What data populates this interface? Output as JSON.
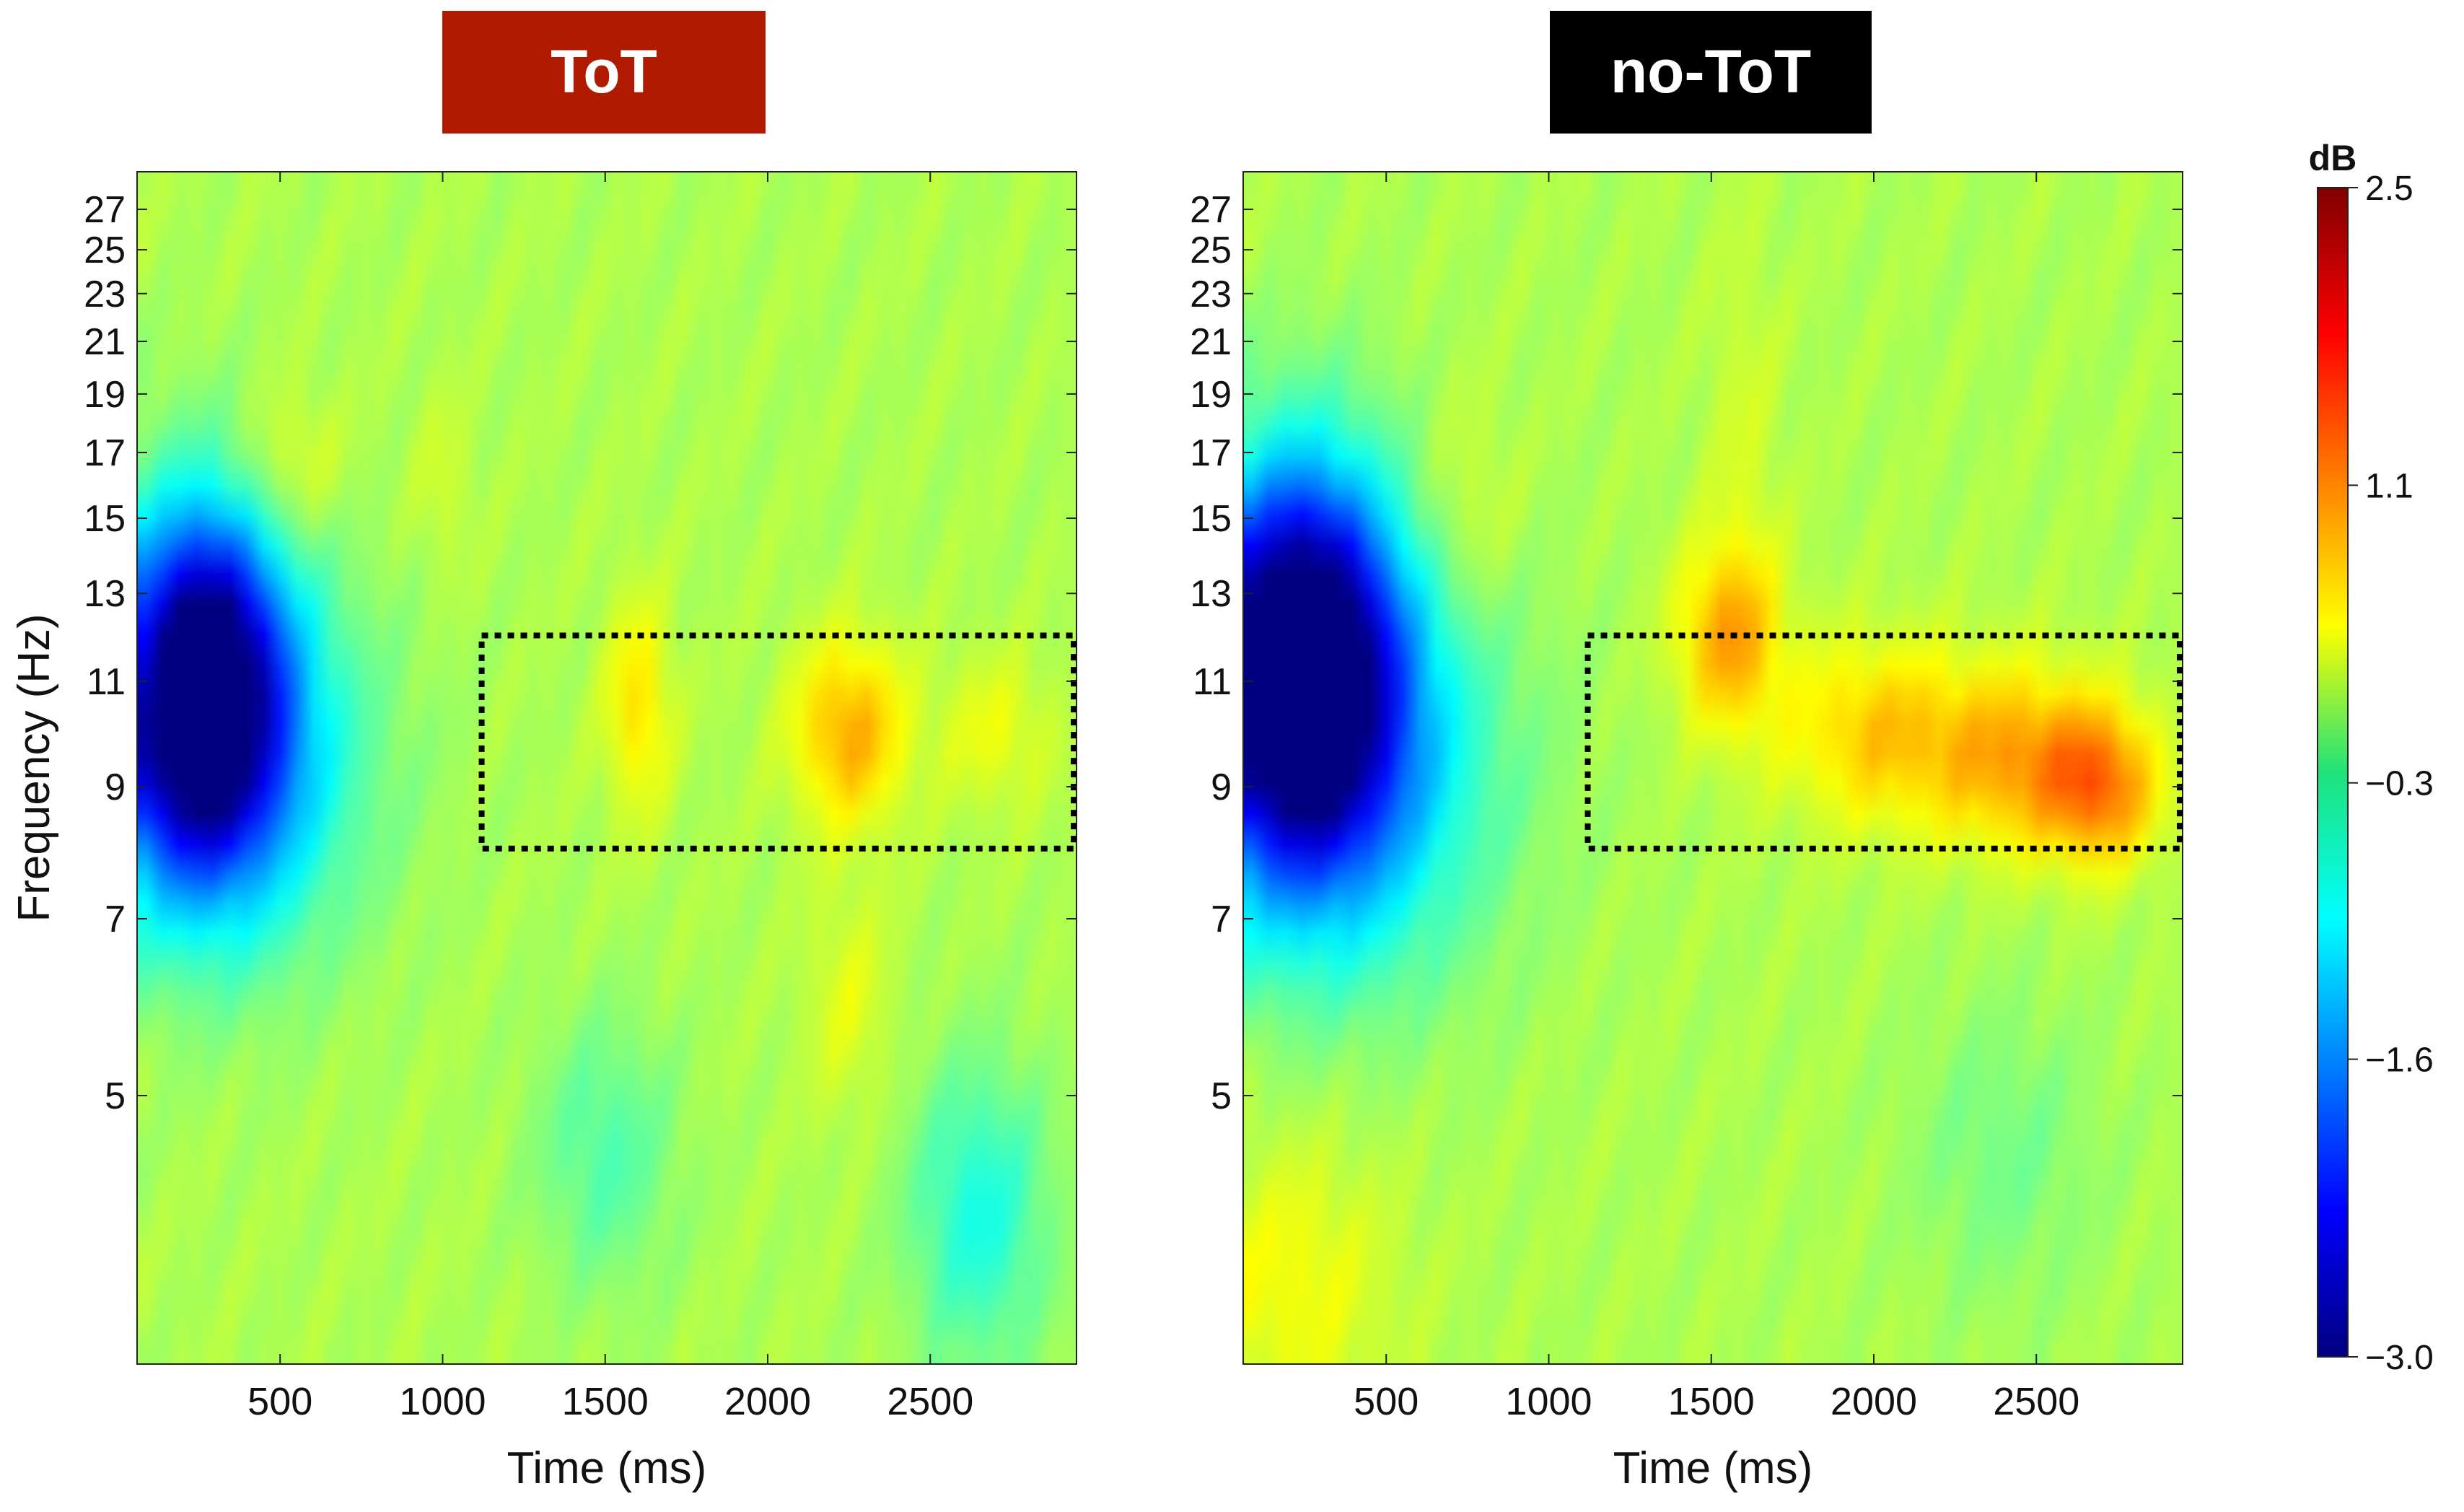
{
  "chart_data": [
    {
      "type": "heatmap",
      "title": "ToT",
      "title_background": "#b01a00",
      "xlabel": "Time (ms)",
      "ylabel": "Frequency (Hz)",
      "x_ticks": [
        500,
        1000,
        1500,
        2000,
        2500
      ],
      "y_ticks": [
        5,
        7,
        9,
        11,
        13,
        15,
        17,
        19,
        21,
        23,
        25,
        27
      ],
      "xlim": [
        60,
        2950
      ],
      "ylim": [
        3,
        29
      ],
      "y_scale": "log",
      "roi_box": {
        "time_ms": [
          1120,
          2950
        ],
        "freq_hz": [
          8,
          12
        ]
      },
      "features": [
        {
          "t": 260,
          "f": 11,
          "db": -3.0,
          "st": 170,
          "sf": 0.23
        },
        {
          "t": 290,
          "f": 9.5,
          "db": -1.5,
          "st": 300,
          "sf": 0.25
        },
        {
          "t": 520,
          "f": 16.5,
          "db": 0.4,
          "st": 110,
          "sf": 0.1
        },
        {
          "t": 1000,
          "f": 16,
          "db": 0.2,
          "st": 60,
          "sf": 0.12
        },
        {
          "t": 1600,
          "f": 10.5,
          "db": 0.6,
          "st": 70,
          "sf": 0.14
        },
        {
          "t": 2250,
          "f": 10,
          "db": 0.9,
          "st": 120,
          "sf": 0.12
        },
        {
          "t": 2700,
          "f": 10,
          "db": 0.35,
          "st": 120,
          "sf": 0.1
        },
        {
          "t": 2250,
          "f": 6,
          "db": 0.3,
          "st": 90,
          "sf": 0.15
        },
        {
          "t": 2650,
          "f": 4,
          "db": -0.8,
          "st": 150,
          "sf": 0.2
        },
        {
          "t": 1500,
          "f": 4.5,
          "db": -0.5,
          "st": 150,
          "sf": 0.18
        }
      ]
    },
    {
      "type": "heatmap",
      "title": "no-ToT",
      "title_background": "#000000",
      "xlabel": "Time (ms)",
      "ylabel": "",
      "x_ticks": [
        500,
        1000,
        1500,
        2000,
        2500
      ],
      "y_ticks": [
        5,
        7,
        9,
        11,
        13,
        15,
        17,
        19,
        21,
        23,
        25,
        27
      ],
      "xlim": [
        60,
        2950
      ],
      "ylim": [
        3,
        29
      ],
      "y_scale": "log",
      "roi_box": {
        "time_ms": [
          1120,
          2950
        ],
        "freq_hz": [
          8,
          12
        ]
      },
      "features": [
        {
          "t": 230,
          "f": 11.5,
          "db": -3.4,
          "st": 200,
          "sf": 0.25
        },
        {
          "t": 330,
          "f": 9.5,
          "db": -1.5,
          "st": 330,
          "sf": 0.28
        },
        {
          "t": 740,
          "f": 15,
          "db": 0.3,
          "st": 110,
          "sf": 0.15
        },
        {
          "t": 1550,
          "f": 12,
          "db": 0.9,
          "st": 110,
          "sf": 0.12
        },
        {
          "t": 2000,
          "f": 10,
          "db": 0.7,
          "st": 200,
          "sf": 0.12
        },
        {
          "t": 2450,
          "f": 9.5,
          "db": 0.9,
          "st": 200,
          "sf": 0.12
        },
        {
          "t": 2700,
          "f": 9,
          "db": 1.0,
          "st": 120,
          "sf": 0.1
        },
        {
          "t": 1600,
          "f": 17,
          "db": 0.2,
          "st": 80,
          "sf": 0.3
        },
        {
          "t": 200,
          "f": 3.5,
          "db": 0.4,
          "st": 220,
          "sf": 0.2
        },
        {
          "t": 2400,
          "f": 4.5,
          "db": -0.3,
          "st": 200,
          "sf": 0.2
        }
      ]
    }
  ],
  "colorbar": {
    "label": "dB",
    "min": -3.0,
    "max": 2.5,
    "tick_values": [
      2.5,
      1.1,
      -0.3,
      -1.6,
      -3.0
    ],
    "tick_labels": [
      "2.5",
      "1.1",
      "−0.3",
      "−1.6",
      "−3.0"
    ],
    "colormap": "jet"
  }
}
